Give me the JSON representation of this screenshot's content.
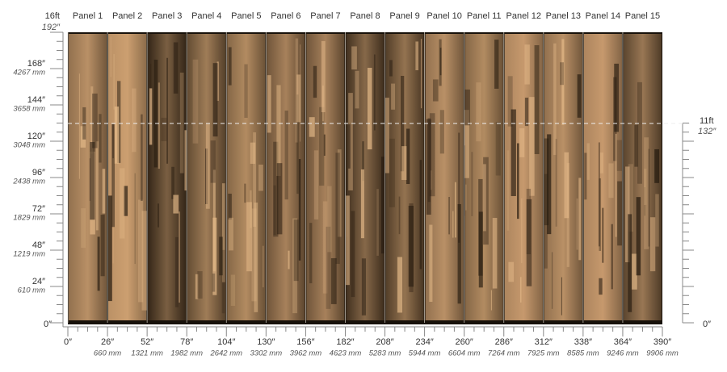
{
  "panels": [
    "Panel 1",
    "Panel 2",
    "Panel 3",
    "Panel 4",
    "Panel 5",
    "Panel 6",
    "Panel 7",
    "Panel 8",
    "Panel 9",
    "Panel 10",
    "Panel 11",
    "Panel 12",
    "Panel 13",
    "Panel 14",
    "Panel 15"
  ],
  "left_ruler": {
    "ft": "16ft",
    "in": "192″",
    "marks": [
      {
        "in": "168″",
        "mm": "4267 mm"
      },
      {
        "in": "144″",
        "mm": "3658 mm"
      },
      {
        "in": "120″",
        "mm": "3048 mm"
      },
      {
        "in": "96″",
        "mm": "2438 mm"
      },
      {
        "in": "72″",
        "mm": "1829 mm"
      },
      {
        "in": "48″",
        "mm": "1219 mm"
      },
      {
        "in": "24″",
        "mm": "610 mm"
      }
    ],
    "zero": "0″"
  },
  "bottom_ruler": [
    {
      "in": "0″"
    },
    {
      "in": "26″",
      "mm": "660 mm"
    },
    {
      "in": "52″",
      "mm": "1321 mm"
    },
    {
      "in": "78″",
      "mm": "1982 mm"
    },
    {
      "in": "104″",
      "mm": "2642 mm"
    },
    {
      "in": "130″",
      "mm": "3302 mm"
    },
    {
      "in": "156″",
      "mm": "3962 mm"
    },
    {
      "in": "182″",
      "mm": "4623 mm"
    },
    {
      "in": "208″",
      "mm": "5283 mm"
    },
    {
      "in": "234″",
      "mm": "5944 mm"
    },
    {
      "in": "260″",
      "mm": "6604 mm"
    },
    {
      "in": "286″",
      "mm": "7264 mm"
    },
    {
      "in": "312″",
      "mm": "7925 mm"
    },
    {
      "in": "338″",
      "mm": "8585 mm"
    },
    {
      "in": "364″",
      "mm": "9246 mm"
    },
    {
      "in": "390″",
      "mm": "9906 mm"
    }
  ],
  "right_ruler": {
    "ft": "11ft",
    "in": "132″",
    "zero": "0″"
  }
}
